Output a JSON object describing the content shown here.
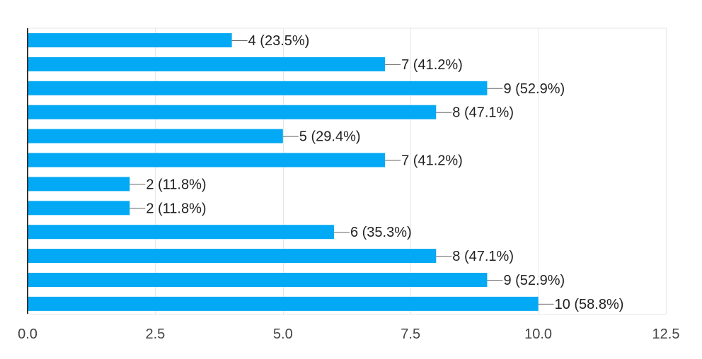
{
  "chart_data": {
    "type": "bar",
    "orientation": "horizontal",
    "values": [
      4,
      7,
      9,
      8,
      5,
      7,
      2,
      2,
      6,
      8,
      9,
      10
    ],
    "data_labels": [
      "4 (23.5%)",
      "7 (41.2%)",
      "9 (52.9%)",
      "8 (47.1%)",
      "5 (29.4%)",
      "7 (41.2%)",
      "2 (11.8%)",
      "2 (11.8%)",
      "6 (35.3%)",
      "8 (47.1%)",
      "9 (52.9%)",
      "10 (58.8%)"
    ],
    "x_ticks": [
      "0.0",
      "2.5",
      "5.0",
      "7.5",
      "10.0",
      "12.5"
    ],
    "xlim": [
      0,
      12.5
    ],
    "grid": true,
    "colors": {
      "bar": "#03a9f4",
      "grid": "#e6e6e6",
      "axis": "#333333",
      "label_text": "#222222",
      "tick_text": "#444444",
      "leader": "#666666"
    }
  }
}
